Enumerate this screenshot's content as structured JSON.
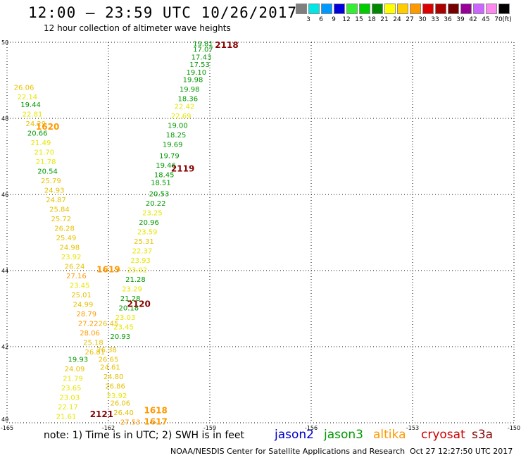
{
  "header": {
    "title": "12:00 – 23:59 UTC 10/26/2017",
    "subtitle": "12 hour collection of altimeter wave heights"
  },
  "legend": {
    "swatches": [
      "#7f7f7f",
      "#00e5e5",
      "#0099ff",
      "#0000dd",
      "#33ee33",
      "#00cc00",
      "#008800",
      "#ffff00",
      "#ffcc00",
      "#ff9900",
      "#dd0000",
      "#aa0000",
      "#770000",
      "#990099",
      "#cc66ff",
      "#ff88ee",
      "#000000"
    ],
    "labels": [
      "3",
      "6",
      "9",
      "12",
      "15",
      "18",
      "21",
      "24",
      "27",
      "30",
      "33",
      "36",
      "39",
      "42",
      "45",
      "70",
      "(ft)"
    ]
  },
  "axes": {
    "lon_ticks": [
      "-165",
      "-162",
      "-159",
      "-156",
      "-153",
      "-150"
    ],
    "lat_ticks": [
      "40",
      "42",
      "44",
      "46",
      "48",
      "50"
    ]
  },
  "note": "note:  1) Time is in UTC;  2) SWH is in feet",
  "satellites": [
    {
      "name": "jason2",
      "color": "#0000cc"
    },
    {
      "name": "jason3",
      "color": "#009900"
    },
    {
      "name": "altika",
      "color": "#ff9900"
    },
    {
      "name": "cryosat",
      "color": "#cc0000"
    },
    {
      "name": "s3a",
      "color": "#880000"
    }
  ],
  "footer": {
    "agency": "NOAA/NESDIS Center for Satellite Applications and Research",
    "timestamp": "Oct 27 12:27:50 UTC 2017"
  },
  "pass_labels": [
    {
      "text": "2118",
      "lon": -158.5,
      "lat": 49.85,
      "color": "#880000"
    },
    {
      "text": "2119",
      "lon": -159.8,
      "lat": 46.6,
      "color": "#880000"
    },
    {
      "text": "2120",
      "lon": -161.1,
      "lat": 43.05,
      "color": "#880000"
    },
    {
      "text": "2121",
      "lon": -162.2,
      "lat": 40.15,
      "color": "#880000"
    },
    {
      "text": "1620",
      "lon": -163.8,
      "lat": 47.7,
      "color": "#ff9900"
    },
    {
      "text": "1619",
      "lon": -162.0,
      "lat": 43.95,
      "color": "#ff9900"
    },
    {
      "text": "1618",
      "lon": -160.6,
      "lat": 40.25,
      "color": "#ff9900"
    },
    {
      "text": "1617",
      "lon": -160.6,
      "lat": 39.95,
      "color": "#ff9900"
    }
  ],
  "observations": [
    {
      "text": "19.81",
      "lon": -159.2,
      "lat": 49.9,
      "color": "#009900"
    },
    {
      "text": "17.07",
      "lon": -159.2,
      "lat": 49.75,
      "color": "#009900"
    },
    {
      "text": "17.43",
      "lon": -159.25,
      "lat": 49.55,
      "color": "#009900"
    },
    {
      "text": "17.53",
      "lon": -159.3,
      "lat": 49.35,
      "color": "#009900"
    },
    {
      "text": "19.10",
      "lon": -159.4,
      "lat": 49.15,
      "color": "#009900"
    },
    {
      "text": "19.98",
      "lon": -159.5,
      "lat": 48.95,
      "color": "#009900"
    },
    {
      "text": "19.98",
      "lon": -159.6,
      "lat": 48.7,
      "color": "#009900"
    },
    {
      "text": "18.36",
      "lon": -159.65,
      "lat": 48.45,
      "color": "#009900"
    },
    {
      "text": "22.42",
      "lon": -159.75,
      "lat": 48.25,
      "color": "#e6e600"
    },
    {
      "text": "22.69",
      "lon": -159.85,
      "lat": 48.0,
      "color": "#e6e600"
    },
    {
      "text": "19.00",
      "lon": -159.95,
      "lat": 47.75,
      "color": "#009900"
    },
    {
      "text": "18.25",
      "lon": -160.0,
      "lat": 47.5,
      "color": "#009900"
    },
    {
      "text": "19.69",
      "lon": -160.1,
      "lat": 47.25,
      "color": "#009900"
    },
    {
      "text": "19.79",
      "lon": -160.2,
      "lat": 46.95,
      "color": "#009900"
    },
    {
      "text": "19.46",
      "lon": -160.3,
      "lat": 46.7,
      "color": "#009900"
    },
    {
      "text": "18.45",
      "lon": -160.35,
      "lat": 46.45,
      "color": "#009900"
    },
    {
      "text": "18.51",
      "lon": -160.45,
      "lat": 46.25,
      "color": "#009900"
    },
    {
      "text": "20.53",
      "lon": -160.5,
      "lat": 45.95,
      "color": "#009900"
    },
    {
      "text": "20.22",
      "lon": -160.6,
      "lat": 45.7,
      "color": "#009900"
    },
    {
      "text": "23.25",
      "lon": -160.7,
      "lat": 45.45,
      "color": "#e6e600"
    },
    {
      "text": "20.96",
      "lon": -160.8,
      "lat": 45.2,
      "color": "#009900"
    },
    {
      "text": "23.59",
      "lon": -160.85,
      "lat": 44.95,
      "color": "#e6e600"
    },
    {
      "text": "25.31",
      "lon": -160.95,
      "lat": 44.7,
      "color": "#e6c000"
    },
    {
      "text": "22.37",
      "lon": -161.0,
      "lat": 44.45,
      "color": "#e6e600"
    },
    {
      "text": "23.93",
      "lon": -161.05,
      "lat": 44.2,
      "color": "#e6e600"
    },
    {
      "text": "23.02",
      "lon": -161.15,
      "lat": 43.95,
      "color": "#e6e600"
    },
    {
      "text": "21.28",
      "lon": -161.2,
      "lat": 43.7,
      "color": "#009900"
    },
    {
      "text": "23.29",
      "lon": -161.3,
      "lat": 43.45,
      "color": "#e6e600"
    },
    {
      "text": "21.28",
      "lon": -161.35,
      "lat": 43.2,
      "color": "#009900"
    },
    {
      "text": "20.18",
      "lon": -161.4,
      "lat": 42.95,
      "color": "#009900"
    },
    {
      "text": "23.03",
      "lon": -161.5,
      "lat": 42.7,
      "color": "#e6e600"
    },
    {
      "text": "23.45",
      "lon": -161.55,
      "lat": 42.45,
      "color": "#e6e600"
    },
    {
      "text": "20.93",
      "lon": -161.65,
      "lat": 42.2,
      "color": "#009900"
    },
    {
      "text": "26.06",
      "lon": -164.5,
      "lat": 48.75,
      "color": "#e6c000"
    },
    {
      "text": "22.14",
      "lon": -164.4,
      "lat": 48.5,
      "color": "#e6e600"
    },
    {
      "text": "19.44",
      "lon": -164.3,
      "lat": 48.3,
      "color": "#009900"
    },
    {
      "text": "22.81",
      "lon": -164.25,
      "lat": 48.05,
      "color": "#e6e600"
    },
    {
      "text": "24.29",
      "lon": -164.15,
      "lat": 47.8,
      "color": "#e6c000"
    },
    {
      "text": "20.66",
      "lon": -164.1,
      "lat": 47.55,
      "color": "#009900"
    },
    {
      "text": "21.49",
      "lon": -164.0,
      "lat": 47.3,
      "color": "#e6e600"
    },
    {
      "text": "21.70",
      "lon": -163.9,
      "lat": 47.05,
      "color": "#e6e600"
    },
    {
      "text": "21.78",
      "lon": -163.85,
      "lat": 46.8,
      "color": "#e6e600"
    },
    {
      "text": "20.54",
      "lon": -163.8,
      "lat": 46.55,
      "color": "#009900"
    },
    {
      "text": "25.79",
      "lon": -163.7,
      "lat": 46.3,
      "color": "#e6c000"
    },
    {
      "text": "24.93",
      "lon": -163.6,
      "lat": 46.05,
      "color": "#e6c000"
    },
    {
      "text": "24.87",
      "lon": -163.55,
      "lat": 45.8,
      "color": "#e6c000"
    },
    {
      "text": "25.84",
      "lon": -163.45,
      "lat": 45.55,
      "color": "#e6c000"
    },
    {
      "text": "25.72",
      "lon": -163.4,
      "lat": 45.3,
      "color": "#e6c000"
    },
    {
      "text": "26.28",
      "lon": -163.3,
      "lat": 45.05,
      "color": "#e6c000"
    },
    {
      "text": "25.49",
      "lon": -163.25,
      "lat": 44.8,
      "color": "#e6c000"
    },
    {
      "text": "24.98",
      "lon": -163.15,
      "lat": 44.55,
      "color": "#e6c000"
    },
    {
      "text": "23.92",
      "lon": -163.1,
      "lat": 44.3,
      "color": "#e6e600"
    },
    {
      "text": "26.24",
      "lon": -163.0,
      "lat": 44.05,
      "color": "#e6c000"
    },
    {
      "text": "27.16",
      "lon": -162.95,
      "lat": 43.8,
      "color": "#ff9900"
    },
    {
      "text": "23.45",
      "lon": -162.85,
      "lat": 43.55,
      "color": "#e6e600"
    },
    {
      "text": "25.01",
      "lon": -162.8,
      "lat": 43.3,
      "color": "#e6c000"
    },
    {
      "text": "24.99",
      "lon": -162.75,
      "lat": 43.05,
      "color": "#e6c000"
    },
    {
      "text": "28.79",
      "lon": -162.65,
      "lat": 42.8,
      "color": "#ff9900"
    },
    {
      "text": "27.22",
      "lon": -162.6,
      "lat": 42.55,
      "color": "#ff9900"
    },
    {
      "text": "28.06",
      "lon": -162.55,
      "lat": 42.3,
      "color": "#ff9900"
    },
    {
      "text": "25.18",
      "lon": -162.45,
      "lat": 42.05,
      "color": "#e6c000"
    },
    {
      "text": "26.81",
      "lon": -162.4,
      "lat": 41.8,
      "color": "#e6c000"
    },
    {
      "text": "19.93",
      "lon": -162.9,
      "lat": 41.6,
      "color": "#009900"
    },
    {
      "text": "24.09",
      "lon": -163.0,
      "lat": 41.35,
      "color": "#e6c000"
    },
    {
      "text": "21.79",
      "lon": -163.05,
      "lat": 41.1,
      "color": "#e6e600"
    },
    {
      "text": "23.65",
      "lon": -163.1,
      "lat": 40.85,
      "color": "#e6e600"
    },
    {
      "text": "23.03",
      "lon": -163.15,
      "lat": 40.6,
      "color": "#e6e600"
    },
    {
      "text": "22.17",
      "lon": -163.2,
      "lat": 40.35,
      "color": "#e6e600"
    },
    {
      "text": "21.61",
      "lon": -163.25,
      "lat": 40.1,
      "color": "#e6e600"
    },
    {
      "text": "26.45",
      "lon": -162.0,
      "lat": 42.55,
      "color": "#e6c000"
    },
    {
      "text": "26.38",
      "lon": -162.05,
      "lat": 41.85,
      "color": "#e6c000"
    },
    {
      "text": "26.65",
      "lon": -162.0,
      "lat": 41.6,
      "color": "#e6c000"
    },
    {
      "text": "24.61",
      "lon": -161.95,
      "lat": 41.4,
      "color": "#e6c000"
    },
    {
      "text": "24.80",
      "lon": -161.85,
      "lat": 41.15,
      "color": "#e6c000"
    },
    {
      "text": "26.86",
      "lon": -161.8,
      "lat": 40.9,
      "color": "#e6c000"
    },
    {
      "text": "23.92",
      "lon": -161.75,
      "lat": 40.65,
      "color": "#e6e600"
    },
    {
      "text": "26.06",
      "lon": -161.65,
      "lat": 40.45,
      "color": "#e6c000"
    },
    {
      "text": "26.40",
      "lon": -161.55,
      "lat": 40.2,
      "color": "#e6c000"
    },
    {
      "text": "27.53",
      "lon": -161.35,
      "lat": 39.95,
      "color": "#ff9900"
    }
  ]
}
